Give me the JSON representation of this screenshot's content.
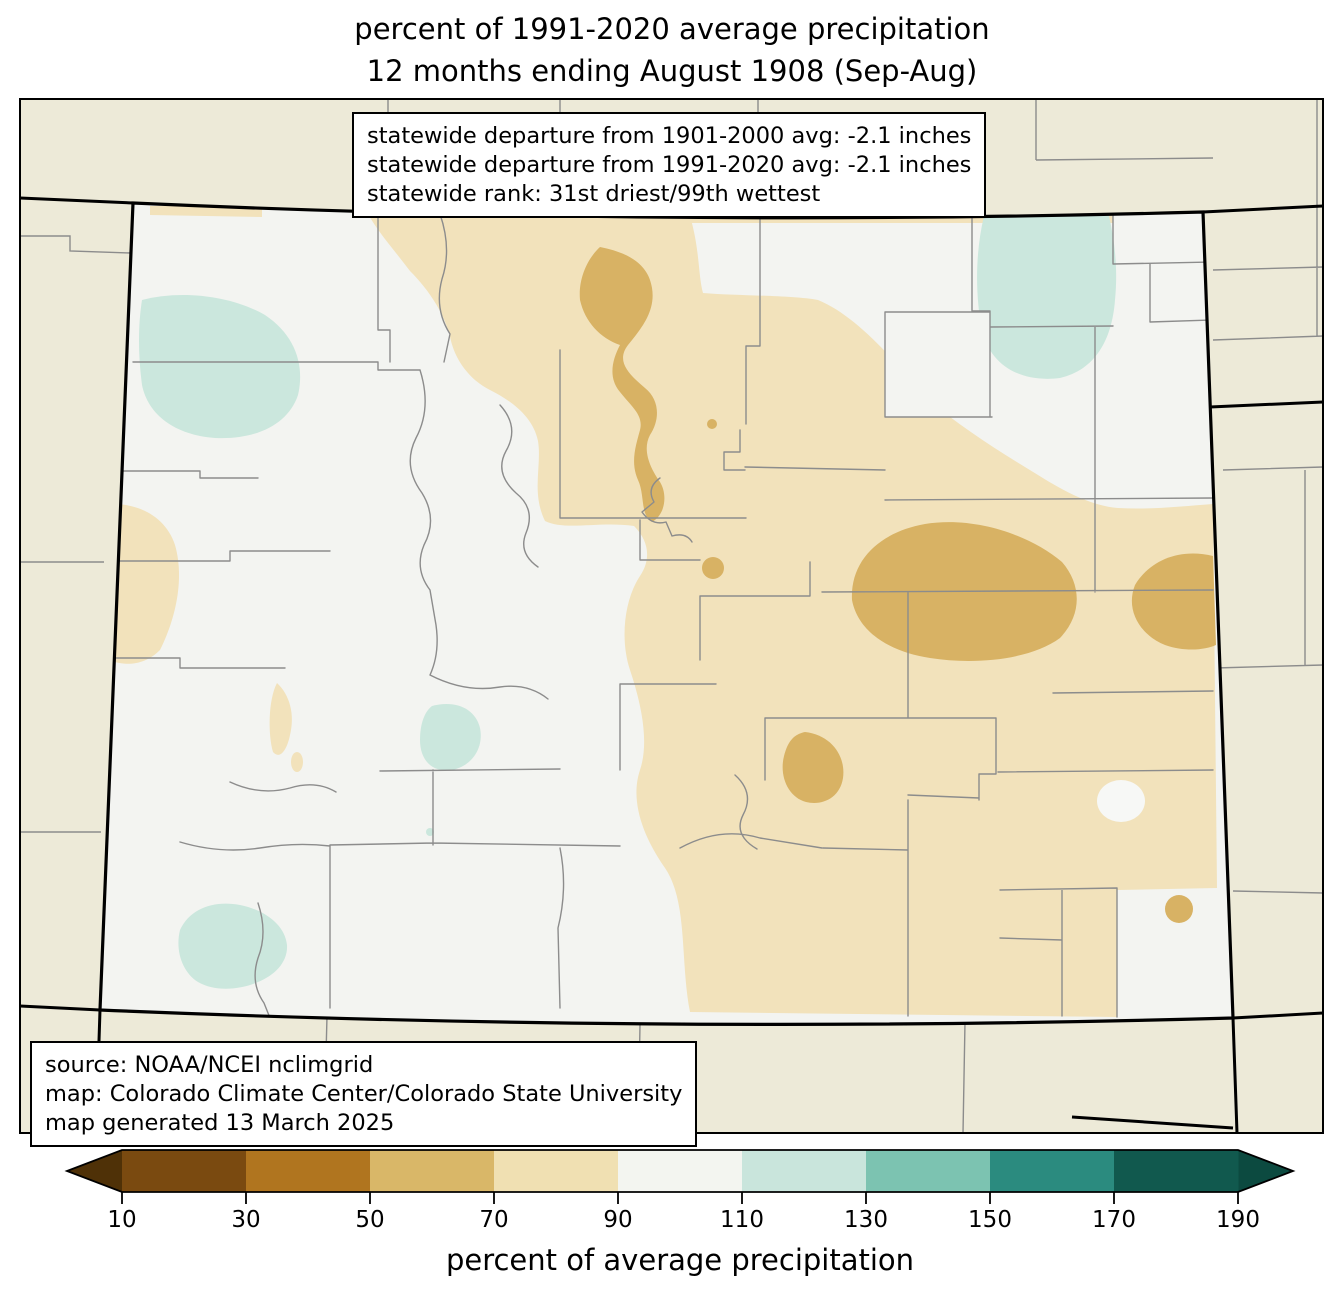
{
  "title": {
    "line1": "percent of 1991-2020 average precipitation",
    "line2": "12 months ending August 1908 (Sep-Aug)"
  },
  "stats_box": {
    "lines": [
      "statewide departure from 1901-2000 avg: -2.1 inches",
      "statewide departure from 1991-2020 avg: -2.1 inches",
      "statewide rank: 31st driest/99th wettest"
    ]
  },
  "source_box": {
    "lines": [
      "source: NOAA/NCEI nclimgrid",
      "map: Colorado Climate Center/Colorado State University",
      "map generated 13 March 2025"
    ]
  },
  "colorbar": {
    "axis_label": "percent of average precipitation",
    "tick_labels": [
      "10",
      "30",
      "50",
      "70",
      "90",
      "110",
      "130",
      "150",
      "170",
      "190"
    ],
    "segment_colors": [
      "#7A4A10",
      "#B0751F",
      "#D9B768",
      "#F0E0B2",
      "#F3F5F0",
      "#C9E5DC",
      "#7CC3B1",
      "#2B8B7F",
      "#11594E"
    ],
    "under_arrow_color": "#4F3107",
    "over_arrow_color": "#0C4A40"
  },
  "map": {
    "palette": {
      "out_of_state": "#EDEAD8",
      "state_base": "#F3F4F1",
      "tan_70_90": "#F2E2BB",
      "tan_50_70": "#D8B264",
      "teal_110_130": "#CBE7DD",
      "white_spot": "#F7F8F6",
      "county_line": "#8C8C8C",
      "state_border": "#000000",
      "frame": "#000000"
    }
  }
}
